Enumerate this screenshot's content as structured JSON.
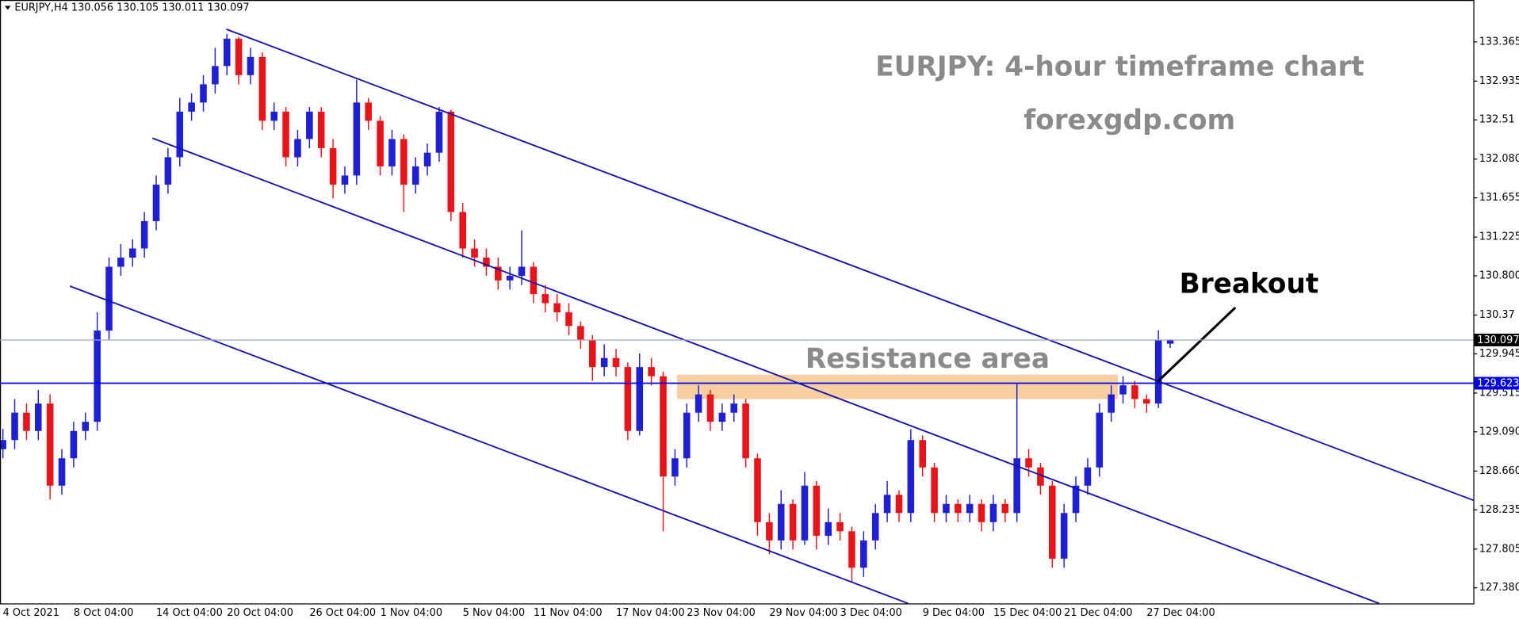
{
  "chart_data": {
    "type": "candlestick",
    "header": "EURJPY,H4  130.056 130.105 130.011 130.097",
    "title": "EURJPY: 4-hour timeframe chart",
    "subtitle": "forexgdp.com",
    "annotations": [
      "Resistance area",
      "Breakout"
    ],
    "up_color": "#1f1fd6",
    "down_color": "#e8141a",
    "categories": [
      "4 Oct 2021",
      null,
      null,
      null,
      null,
      null,
      "8 Oct 04:00",
      null,
      null,
      null,
      null,
      null,
      null,
      "14 Oct 04:00",
      null,
      null,
      null,
      null,
      null,
      "20 Oct 04:00",
      null,
      null,
      null,
      null,
      null,
      null,
      "26 Oct 04:00",
      null,
      null,
      null,
      null,
      null,
      "1 Nov 04:00",
      null,
      null,
      null,
      null,
      null,
      null,
      "5 Nov 04:00",
      null,
      null,
      null,
      null,
      null,
      "11 Nov 04:00",
      null,
      null,
      null,
      null,
      null,
      null,
      "17 Nov 04:00",
      null,
      null,
      null,
      null,
      null,
      "23 Nov 04:00",
      null,
      null,
      null,
      null,
      null,
      null,
      "29 Nov 04:00",
      null,
      null,
      null,
      null,
      null,
      "3 Dec 04:00",
      null,
      null,
      null,
      null,
      null,
      null,
      "9 Dec 04:00",
      null,
      null,
      null,
      null,
      null,
      "15 Dec 04:00",
      null,
      null,
      null,
      null,
      null,
      "21 Dec 04:00",
      null,
      null,
      null,
      null,
      null,
      null,
      "27 Dec 04:00",
      null,
      null
    ],
    "open": [
      128.9,
      129.0,
      129.3,
      129.1,
      129.4,
      128.5,
      128.8,
      129.1,
      129.2,
      130.2,
      130.9,
      131.0,
      131.1,
      131.4,
      131.8,
      132.1,
      132.6,
      132.7,
      132.9,
      133.1,
      133.4,
      133.0,
      133.2,
      132.5,
      132.6,
      132.1,
      132.3,
      132.6,
      132.2,
      131.8,
      131.9,
      132.7,
      132.5,
      132.0,
      132.3,
      131.8,
      132.0,
      132.15,
      132.6,
      131.5,
      131.1,
      131.0,
      130.9,
      130.75,
      130.8,
      130.9,
      130.6,
      130.5,
      130.4,
      130.25,
      130.1,
      129.8,
      129.9,
      129.8,
      129.1,
      129.8,
      129.7,
      128.6,
      128.8,
      129.3,
      129.5,
      129.2,
      129.3,
      129.4,
      128.8,
      128.1,
      127.9,
      128.3,
      127.9,
      128.5,
      127.95,
      128.1,
      128.0,
      127.6,
      127.9,
      128.2,
      128.4,
      128.2,
      129.0,
      128.7,
      128.2,
      128.3,
      128.2,
      128.3,
      128.1,
      128.3,
      128.2,
      128.8,
      128.7,
      128.5,
      127.7,
      128.2,
      128.5,
      128.7,
      129.3,
      129.5,
      129.6,
      129.45,
      129.4,
      130.056
    ],
    "high": [
      129.12,
      129.45,
      129.4,
      129.55,
      129.5,
      128.9,
      129.2,
      129.3,
      130.4,
      131.0,
      131.15,
      131.2,
      131.5,
      131.9,
      132.2,
      132.75,
      132.8,
      133.0,
      133.3,
      133.45,
      133.42,
      133.3,
      133.25,
      132.7,
      132.65,
      132.4,
      132.65,
      132.65,
      132.3,
      132.0,
      132.95,
      132.75,
      132.55,
      132.4,
      132.35,
      132.1,
      132.25,
      132.65,
      132.62,
      131.6,
      131.2,
      131.1,
      131.0,
      130.9,
      131.3,
      130.95,
      130.7,
      130.6,
      130.5,
      130.3,
      130.15,
      130.05,
      130.0,
      129.85,
      129.95,
      129.9,
      129.75,
      128.9,
      129.4,
      129.6,
      129.55,
      129.4,
      129.5,
      129.45,
      128.85,
      128.2,
      128.45,
      128.35,
      128.65,
      128.55,
      128.25,
      128.2,
      128.05,
      128.0,
      128.3,
      128.55,
      128.45,
      129.12,
      129.05,
      128.75,
      128.4,
      128.35,
      128.4,
      128.35,
      128.4,
      128.35,
      129.62,
      128.9,
      128.75,
      128.55,
      128.3,
      128.6,
      128.8,
      129.4,
      129.6,
      129.7,
      129.65,
      129.5,
      130.2,
      130.105
    ],
    "low": [
      128.8,
      128.9,
      129.0,
      129.0,
      128.35,
      128.4,
      128.7,
      129.0,
      129.1,
      130.1,
      130.8,
      130.9,
      131.0,
      131.3,
      131.7,
      132.0,
      132.5,
      132.6,
      132.8,
      133.0,
      132.9,
      132.9,
      132.4,
      132.4,
      132.0,
      132.0,
      132.2,
      132.1,
      131.65,
      131.7,
      131.8,
      132.4,
      131.9,
      131.9,
      131.5,
      131.7,
      131.9,
      132.05,
      131.4,
      131.0,
      130.9,
      130.8,
      130.65,
      130.65,
      130.7,
      130.5,
      130.4,
      130.3,
      130.15,
      130.0,
      129.65,
      129.7,
      129.7,
      129.0,
      129.05,
      129.6,
      128.0,
      128.5,
      128.7,
      129.2,
      129.1,
      129.1,
      129.2,
      128.7,
      127.95,
      127.75,
      127.8,
      127.8,
      127.85,
      127.8,
      127.85,
      127.9,
      127.45,
      127.5,
      127.8,
      128.1,
      128.1,
      128.1,
      128.6,
      128.1,
      128.1,
      128.1,
      128.1,
      128.0,
      128.0,
      128.1,
      128.1,
      128.6,
      128.4,
      127.6,
      127.6,
      128.1,
      128.4,
      128.6,
      129.2,
      129.4,
      129.35,
      129.3,
      129.35,
      130.011
    ],
    "close": [
      129.0,
      129.3,
      129.1,
      129.4,
      128.5,
      128.8,
      129.1,
      129.2,
      130.2,
      130.9,
      131.0,
      131.1,
      131.4,
      131.8,
      132.1,
      132.6,
      132.7,
      132.9,
      133.1,
      133.4,
      133.0,
      133.2,
      132.5,
      132.6,
      132.1,
      132.3,
      132.6,
      132.2,
      131.8,
      131.9,
      132.7,
      132.5,
      132.0,
      132.3,
      131.8,
      132.0,
      132.15,
      132.6,
      131.5,
      131.1,
      131.0,
      130.9,
      130.75,
      130.8,
      130.9,
      130.6,
      130.5,
      130.4,
      130.25,
      130.1,
      129.8,
      129.9,
      129.8,
      129.1,
      129.8,
      129.7,
      128.6,
      128.8,
      129.3,
      129.5,
      129.2,
      129.3,
      129.4,
      128.8,
      128.1,
      127.9,
      128.3,
      127.9,
      128.5,
      127.95,
      128.1,
      128.0,
      127.6,
      127.9,
      128.2,
      128.4,
      128.2,
      129.0,
      128.7,
      128.2,
      128.3,
      128.2,
      128.3,
      128.1,
      128.3,
      128.2,
      128.8,
      128.7,
      128.5,
      127.7,
      128.2,
      128.5,
      128.7,
      129.3,
      129.5,
      129.6,
      129.45,
      129.4,
      130.1,
      130.097
    ],
    "ylim": [
      127.209,
      133.824
    ],
    "yticks": [
      133.365,
      132.935,
      132.51,
      {
        "value": 132.08,
        "label": "132.080"
      },
      131.655,
      131.225,
      {
        "value": 130.8,
        "label": "130.800"
      },
      130.37,
      129.945,
      129.515,
      {
        "value": 129.09,
        "label": "129.090"
      },
      {
        "value": 128.66,
        "label": "128.660"
      },
      128.235,
      127.805,
      {
        "value": 127.38,
        "label": "127.380"
      }
    ],
    "ytick_labels_fix": null,
    "levels": [
      {
        "value": 130.097,
        "color": "#9aa8b8",
        "label_background": "#000000"
      },
      {
        "value": 129.623,
        "color": "#0000e0",
        "label_background": "#0000e0"
      }
    ]
  }
}
